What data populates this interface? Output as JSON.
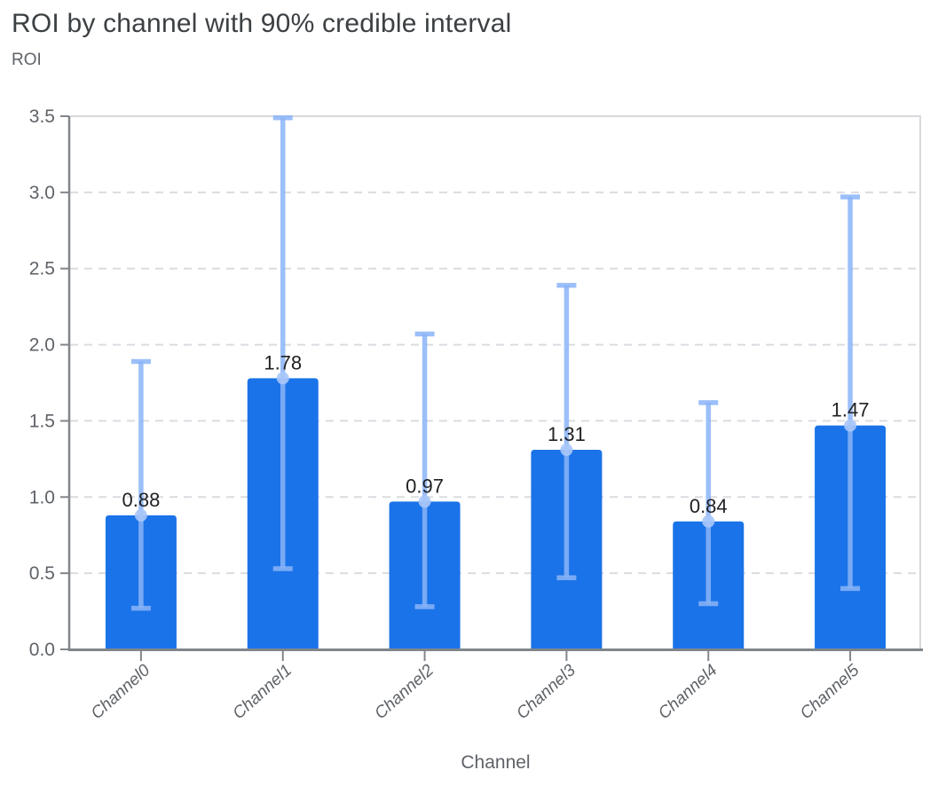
{
  "chart_data": {
    "type": "bar",
    "title": "ROI by channel with 90% credible interval",
    "ylabel": "ROI",
    "xlabel": "Channel",
    "categories": [
      "Channel0",
      "Channel1",
      "Channel2",
      "Channel3",
      "Channel4",
      "Channel5"
    ],
    "values": [
      0.88,
      1.78,
      0.97,
      1.31,
      0.84,
      1.47
    ],
    "value_labels": [
      "0.88",
      "1.78",
      "0.97",
      "1.31",
      "0.84",
      "1.47"
    ],
    "error_low": [
      0.27,
      0.53,
      0.28,
      0.47,
      0.3,
      0.4
    ],
    "error_high": [
      1.89,
      3.49,
      2.07,
      2.39,
      1.62,
      2.97
    ],
    "error_bar_meaning": "90% credible interval",
    "ylim": [
      0,
      3.5
    ],
    "yticks": [
      0,
      0.5,
      1,
      1.5,
      2,
      2.5,
      3,
      3.5
    ],
    "ytick_labels": [
      "0.0",
      "0.5",
      "1.0",
      "1.5",
      "2.0",
      "2.5",
      "3.0",
      "3.5"
    ],
    "grid": "horizontal-dashed",
    "legend": "none",
    "colors": {
      "bar": "#1a73e8",
      "error_bar": "#8ab4f8",
      "marker": "#a8c7fa",
      "grid": "#dadce0",
      "border": "#d6d9dc",
      "axis": "#80868b",
      "tick_text": "#5f6368",
      "category_text": "#5f6368",
      "title_text": "#3c4043",
      "value_text": "#202124"
    }
  }
}
